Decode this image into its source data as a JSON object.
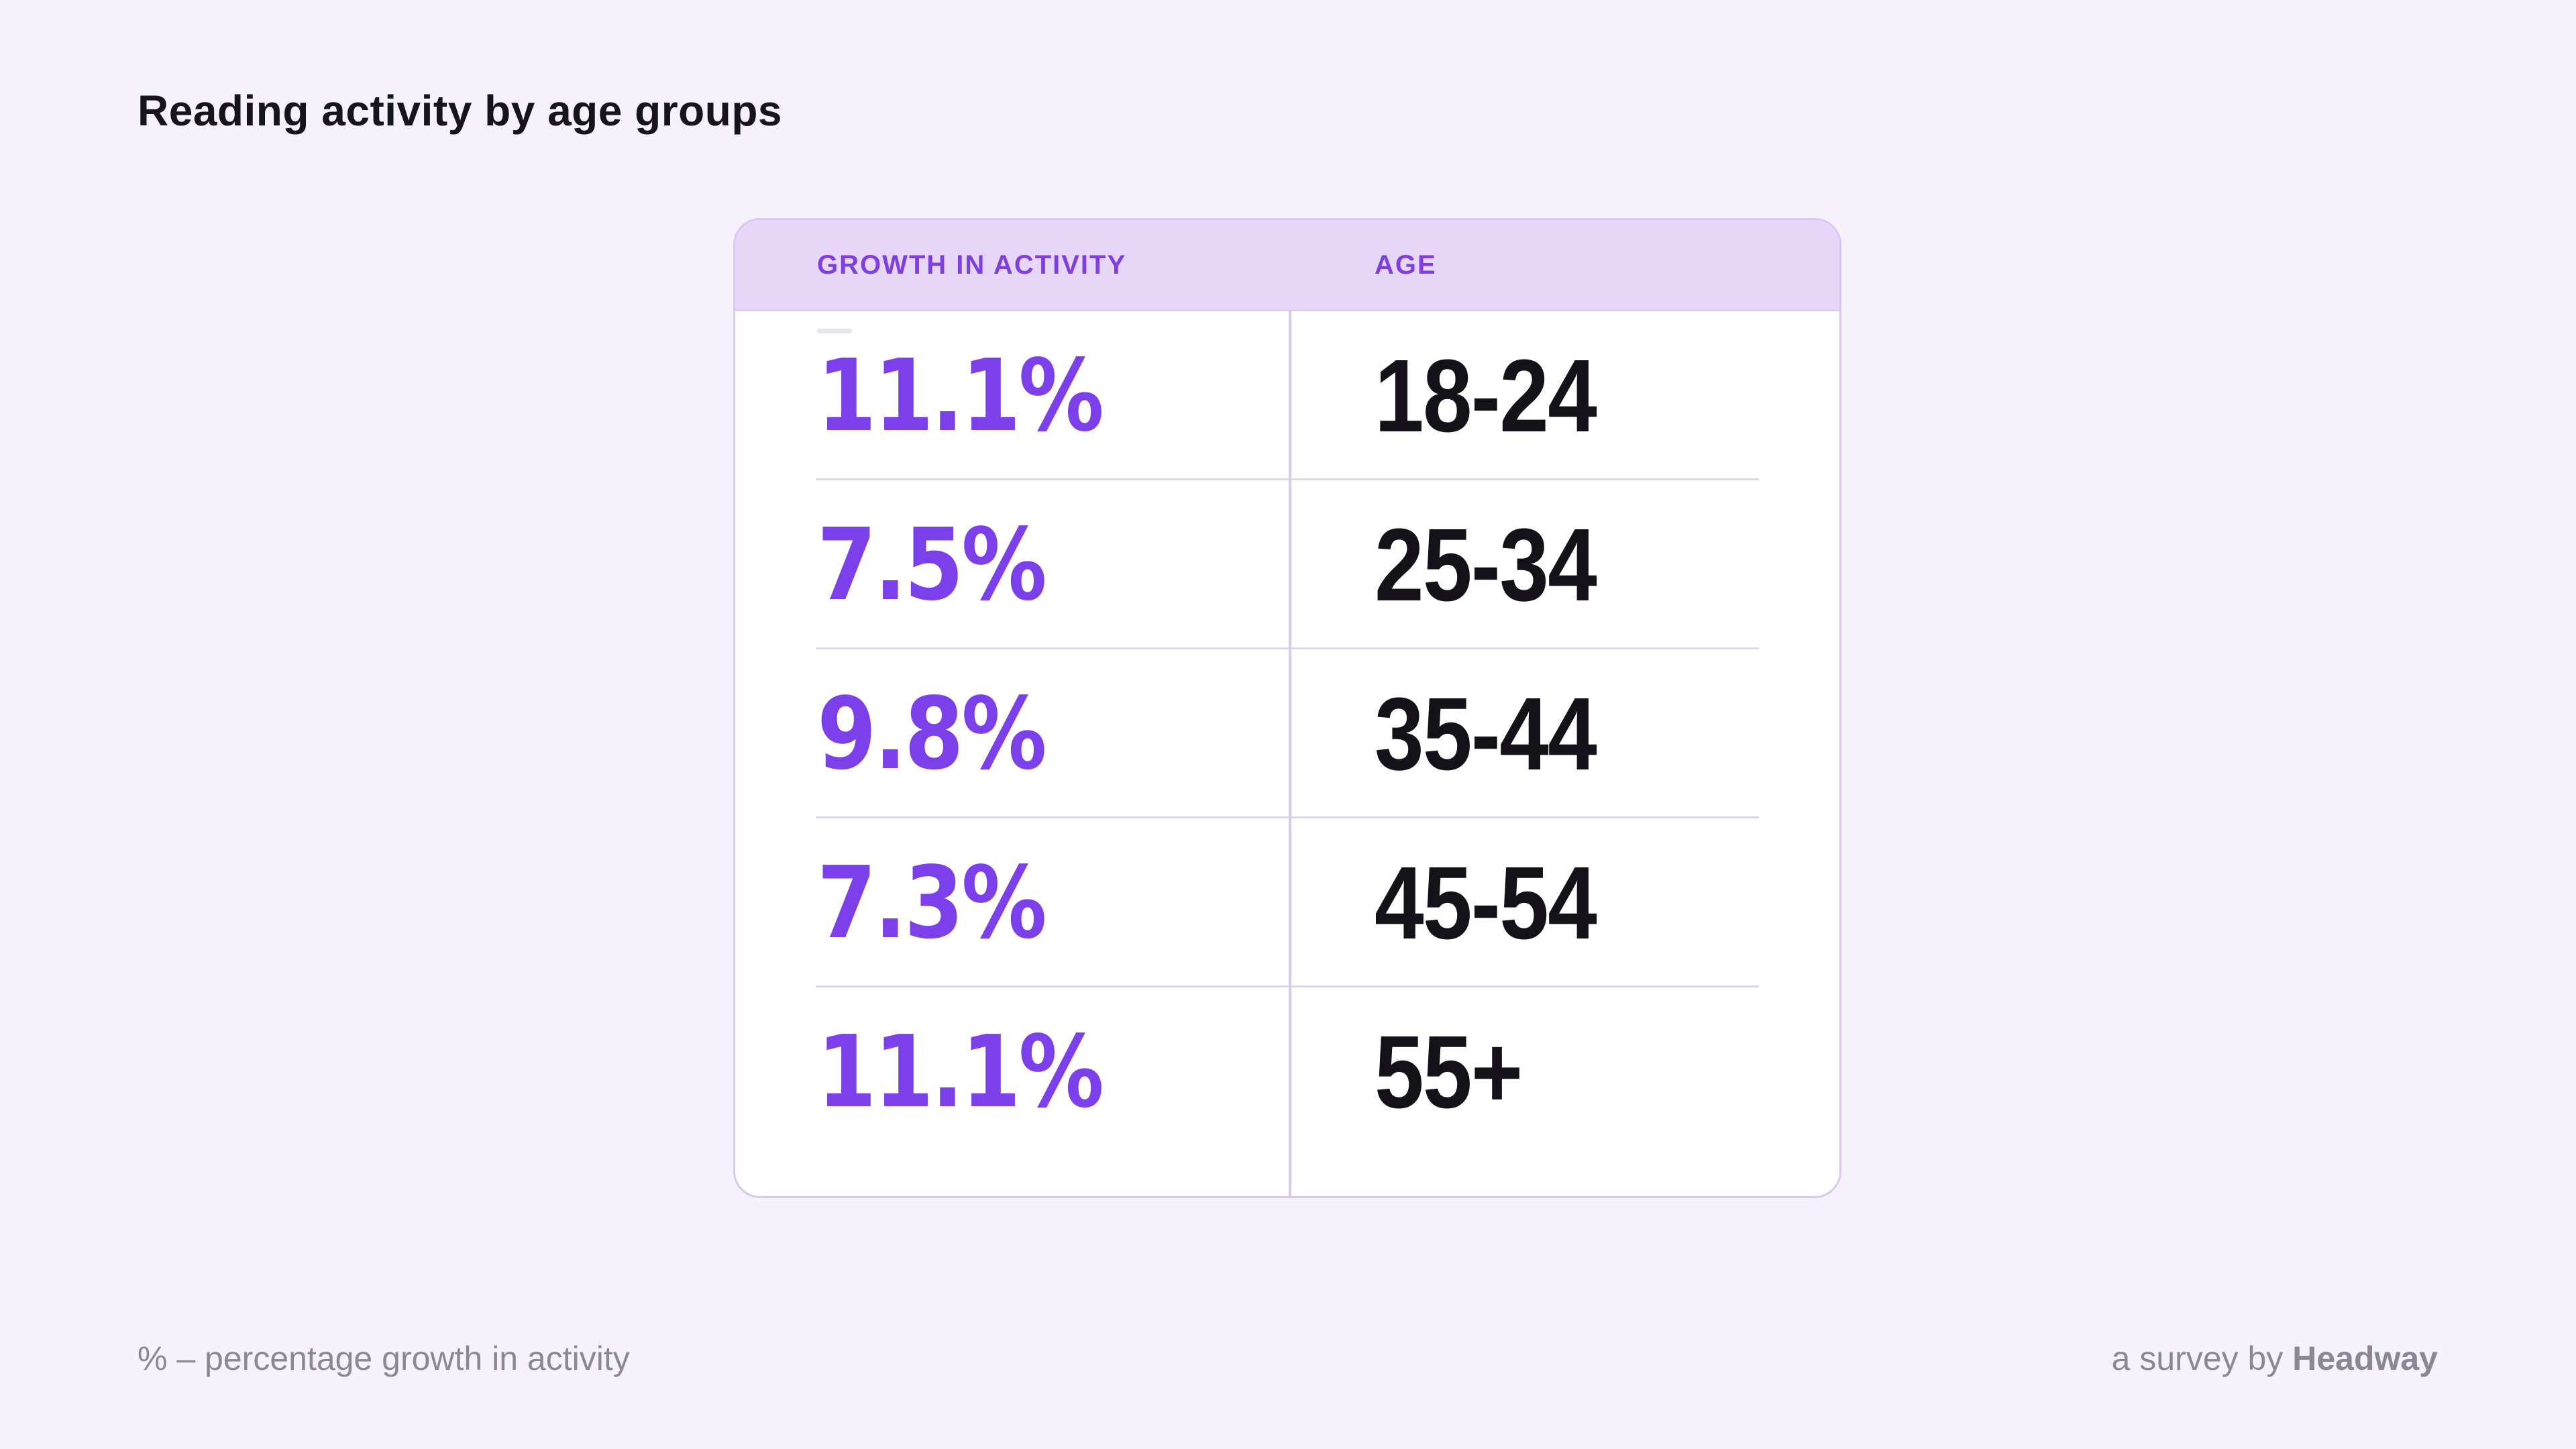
{
  "colors": {
    "page-bg": "#F5F2FC",
    "card-bg": "#FFFFFF",
    "card-border": "#D9C6F1",
    "header-bg": "#E6D6F8",
    "accent-purple": "#7C40EB",
    "header-text": "#7F3EE0",
    "age-text": "#141119",
    "divider": "#E1D3F4",
    "divider-vertical": "#DAC8F2",
    "muted-text": "#8B8893",
    "title-text": "#17151B"
  },
  "page": {
    "title": "Reading activity by age groups"
  },
  "table": {
    "column_headers": {
      "growth": "GROWTH IN ACTIVITY",
      "age": "AGE"
    },
    "rows": [
      {
        "growth": "11.1%",
        "age": "18-24"
      },
      {
        "growth": "7.5%",
        "age": "25-34"
      },
      {
        "growth": "9.8%",
        "age": "35-44"
      },
      {
        "growth": "7.3%",
        "age": "45-54"
      },
      {
        "growth": "11.1%",
        "age": "55+"
      }
    ]
  },
  "footer": {
    "note": "% – percentage growth in activity",
    "credit_prefix": "a survey by ",
    "credit_brand": "Headway"
  },
  "chart_data": {
    "type": "table",
    "title": "Reading activity by age groups",
    "columns": [
      "Growth in activity (%)",
      "Age"
    ],
    "categories": [
      "18-24",
      "25-34",
      "35-44",
      "45-54",
      "55+"
    ],
    "values": [
      11.1,
      7.5,
      9.8,
      7.3,
      11.1
    ],
    "note": "% – percentage growth in activity",
    "source": "a survey by Headway",
    "legend_position": "none",
    "grid": "row dividers only"
  }
}
